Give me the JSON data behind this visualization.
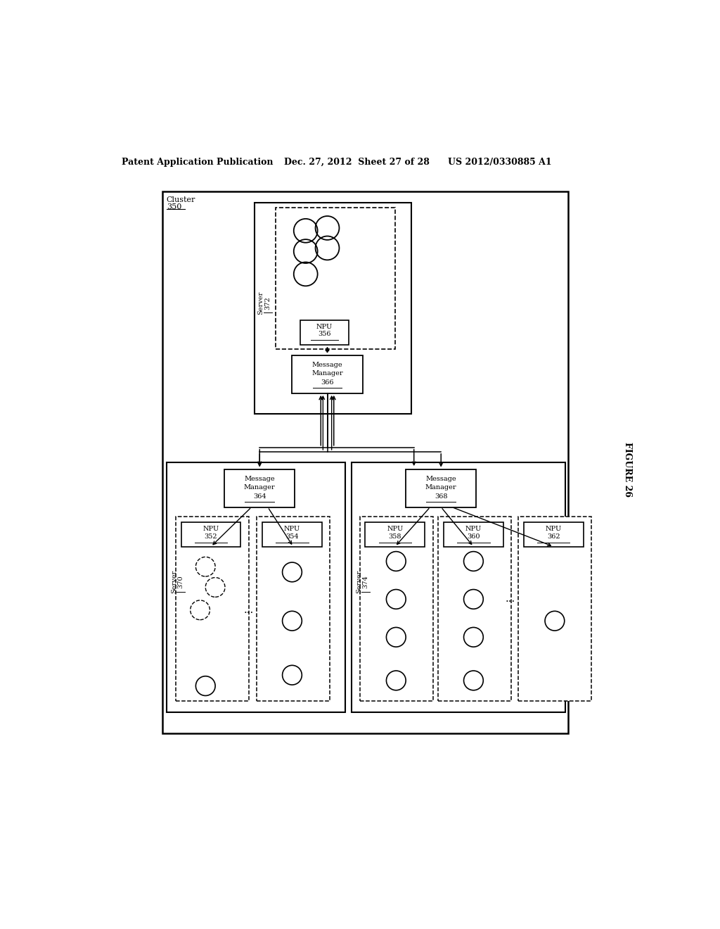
{
  "header_left": "Patent Application Publication",
  "header_mid": "Dec. 27, 2012  Sheet 27 of 28",
  "header_right": "US 2012/0330885 A1",
  "figure_label": "FIGURE 26",
  "bg_color": "#ffffff"
}
